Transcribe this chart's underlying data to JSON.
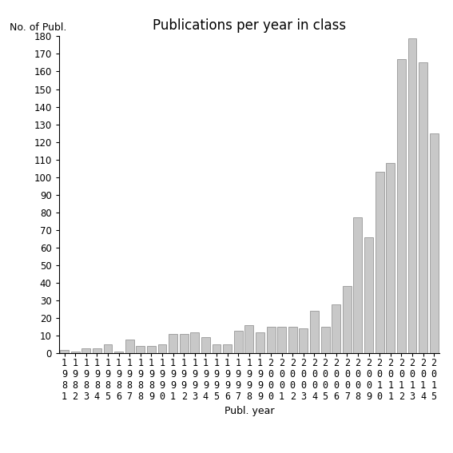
{
  "years": [
    "1981",
    "1982",
    "1983",
    "1984",
    "1985",
    "1986",
    "1987",
    "1988",
    "1989",
    "1990",
    "1991",
    "1992",
    "1993",
    "1994",
    "1995",
    "1996",
    "1997",
    "1998",
    "1999",
    "2000",
    "2001",
    "2002",
    "2003",
    "2004",
    "2005",
    "2006",
    "2007",
    "2008",
    "2009",
    "2010",
    "2011",
    "2012",
    "2013",
    "2014",
    "2015"
  ],
  "values": [
    2,
    1,
    3,
    3,
    5,
    1,
    8,
    4,
    4,
    5,
    11,
    11,
    12,
    9,
    5,
    5,
    13,
    16,
    12,
    15,
    15,
    15,
    14,
    24,
    15,
    28,
    38,
    77,
    66,
    103,
    108,
    167,
    179,
    165,
    125
  ],
  "bar_color": "#c8c8c8",
  "bar_edgecolor": "#888888",
  "title": "Publications per year in class",
  "ylabel": "No. of Publ.",
  "xlabel": "Publ. year",
  "ylim": [
    0,
    180
  ],
  "yticks": [
    0,
    10,
    20,
    30,
    40,
    50,
    60,
    70,
    80,
    90,
    100,
    110,
    120,
    130,
    140,
    150,
    160,
    170,
    180
  ],
  "background_color": "#ffffff",
  "title_fontsize": 12,
  "label_fontsize": 9,
  "tick_fontsize": 8.5
}
